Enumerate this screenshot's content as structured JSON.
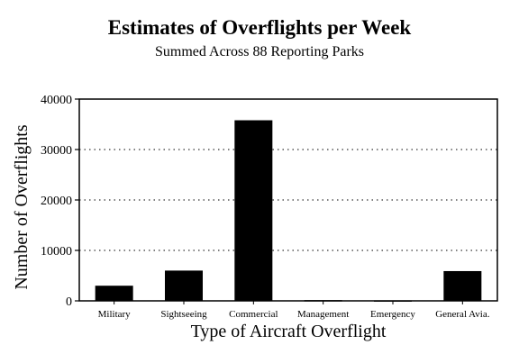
{
  "chart_data": {
    "type": "bar",
    "title": "Estimates of Overflights per Week",
    "subtitle": "Summed Across 88 Reporting Parks",
    "xlabel": "Type of Aircraft Overflight",
    "ylabel": "Number of Overflights",
    "categories": [
      "Military",
      "Sightseeing",
      "Commercial",
      "Management",
      "Emergency",
      "General Avia."
    ],
    "values": [
      3000,
      6000,
      35800,
      150,
      100,
      5900
    ],
    "ylim": [
      0,
      40000
    ],
    "yticks": [
      "0",
      "10000",
      "20000",
      "30000",
      "40000"
    ],
    "grid": "horizontal dotted",
    "bar_color": "#000000",
    "legend": "none"
  }
}
